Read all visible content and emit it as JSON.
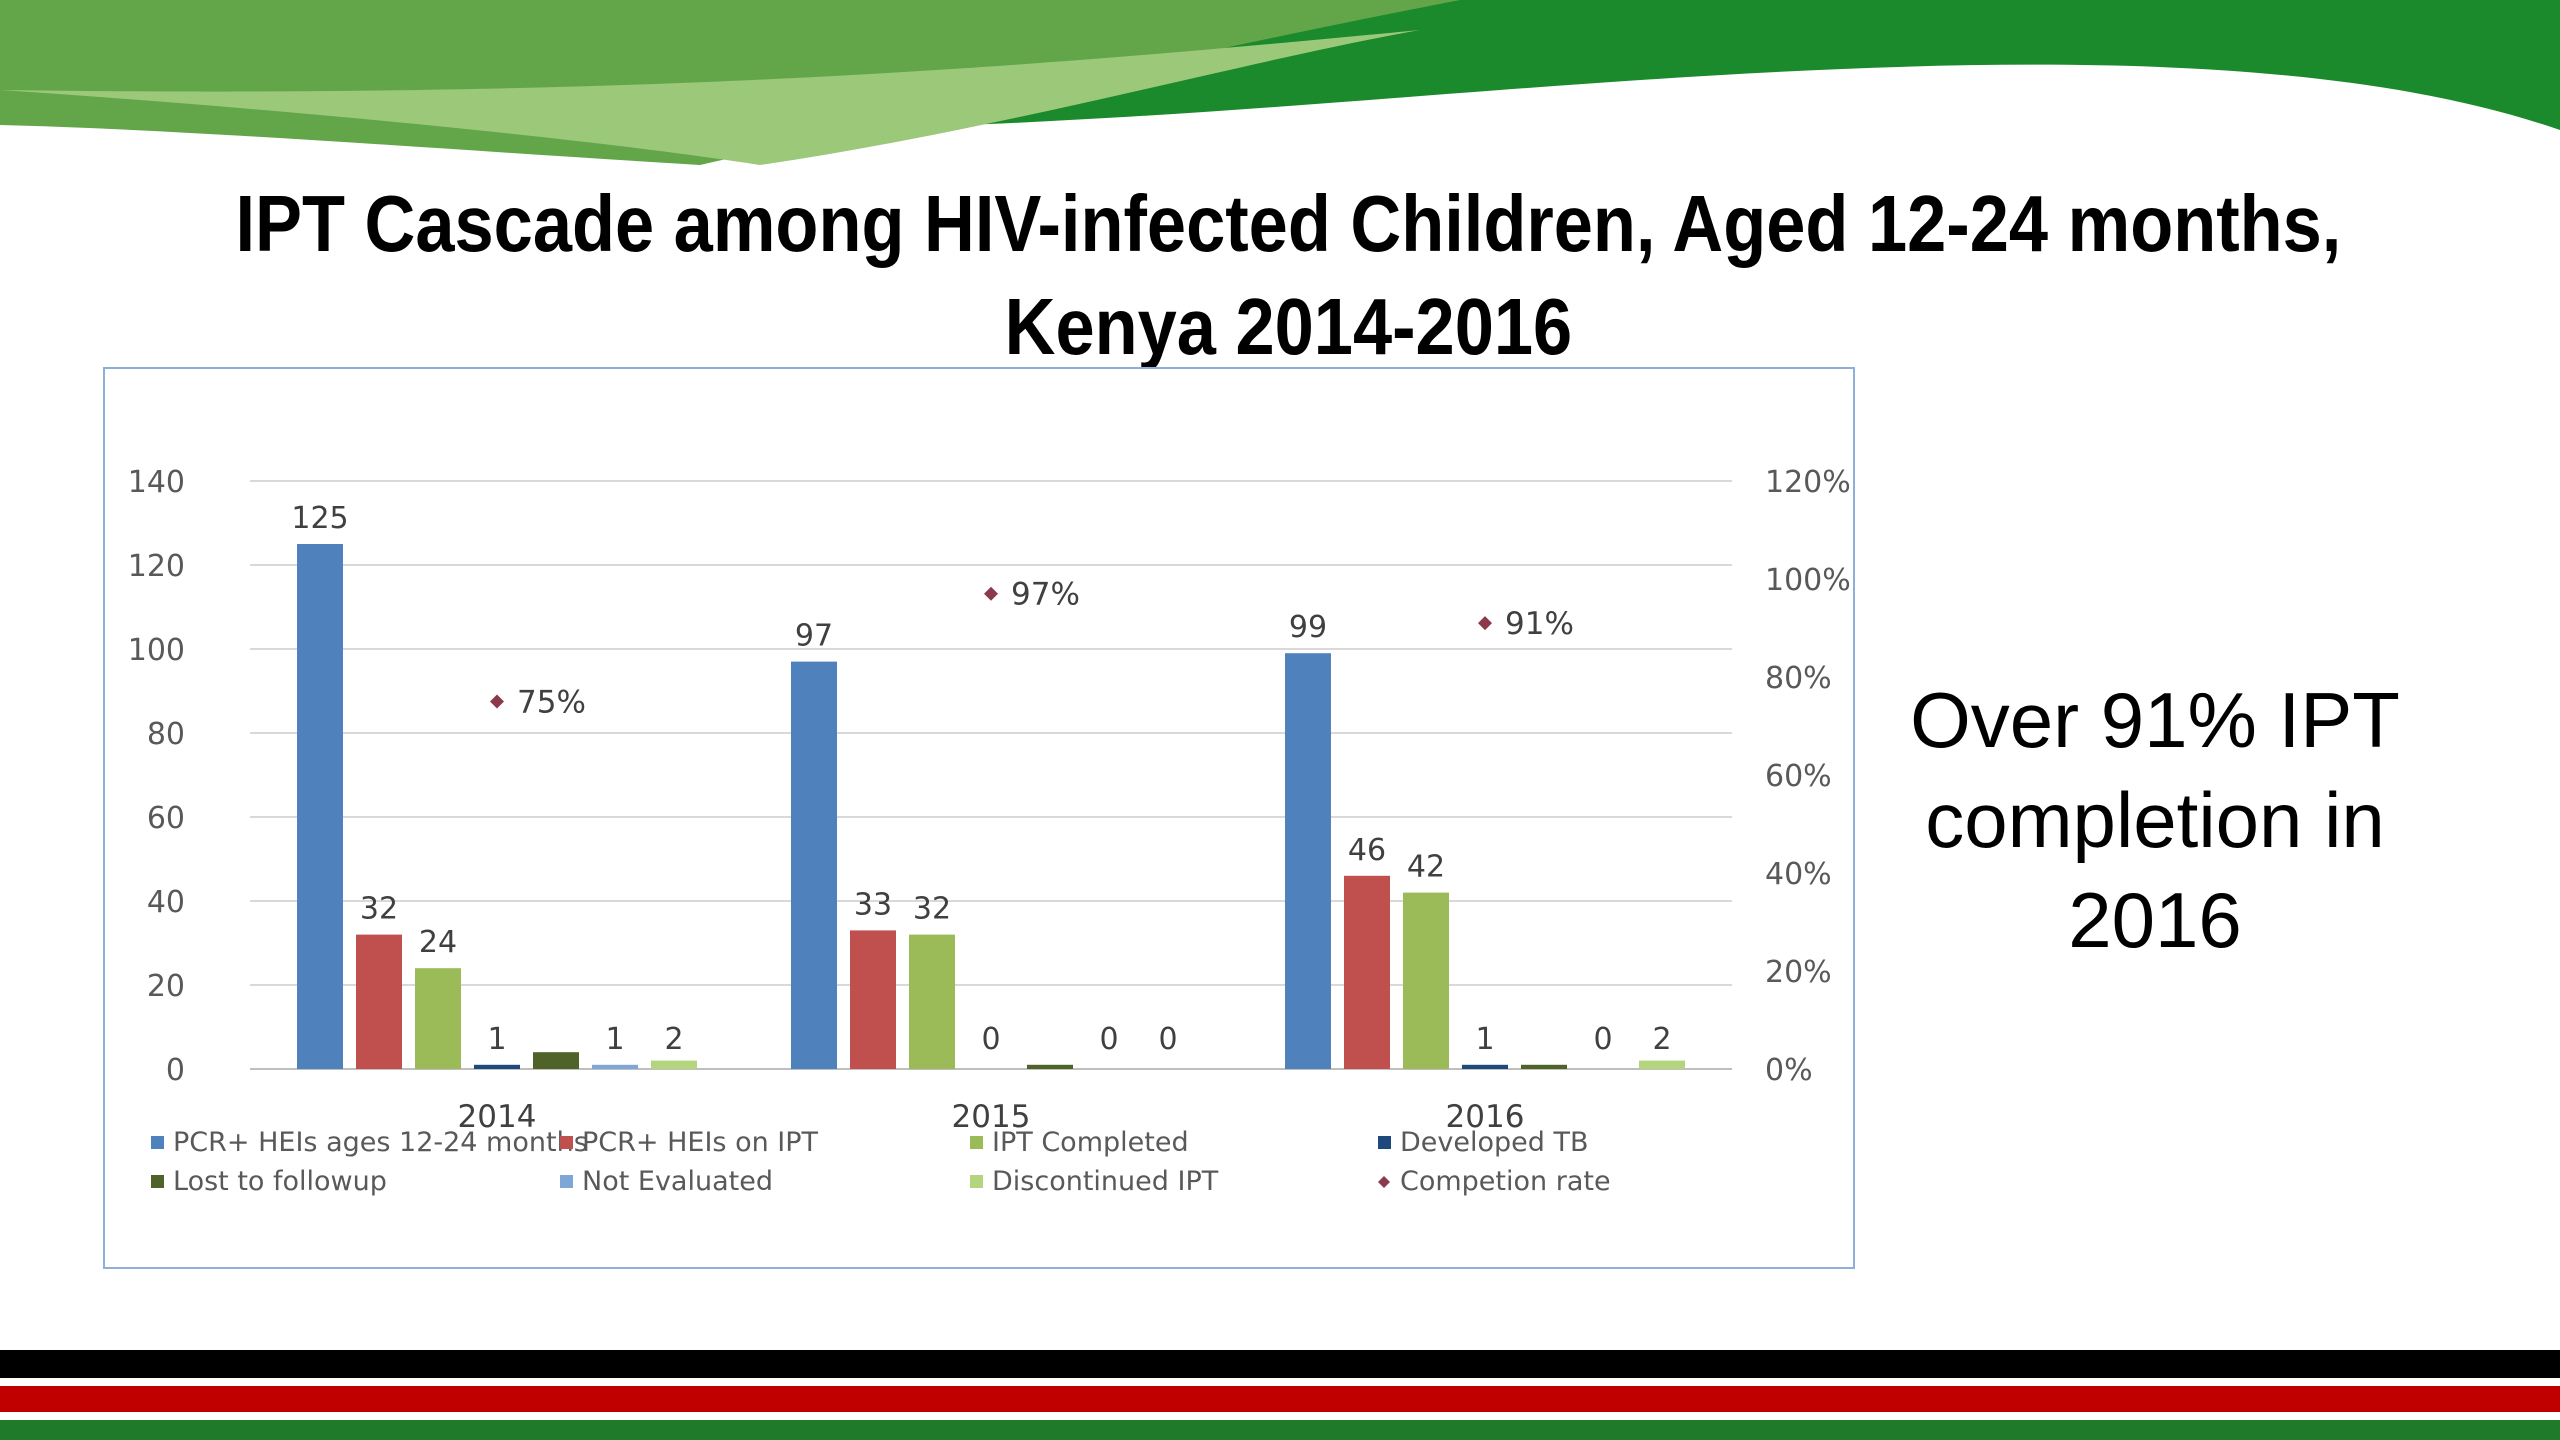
{
  "slide": {
    "title": "IPT Cascade among HIV-infected Children, Aged 12-24 months, Kenya 2014-2016",
    "side_note": "Over 91% IPT completion in 2016"
  },
  "colors": {
    "header_dark": "#1b8a2c",
    "header_light": "#9cc87a",
    "header_mid": "#63a64a",
    "footer_black": "#000000",
    "footer_red": "#c00000",
    "footer_green": "#1f7a2a"
  },
  "chart_data": {
    "type": "bar",
    "categories": [
      "2014",
      "2015",
      "2016"
    ],
    "ylim": [
      0,
      140
    ],
    "yticks": [
      0,
      20,
      40,
      60,
      80,
      100,
      120,
      140
    ],
    "y2lim": [
      0,
      1.2
    ],
    "y2ticks": [
      "0%",
      "20%",
      "40%",
      "60%",
      "80%",
      "100%",
      "120%"
    ],
    "series": [
      {
        "name": "PCR+ HEIs ages 12-24 months",
        "color": "#4f81bd",
        "values": [
          125,
          97,
          99
        ],
        "labels": [
          "125",
          "97",
          "99"
        ]
      },
      {
        "name": "PCR+ HEIs on IPT",
        "color": "#c0504d",
        "values": [
          32,
          33,
          46
        ],
        "labels": [
          "32",
          "33",
          "46"
        ]
      },
      {
        "name": "IPT Completed",
        "color": "#9bbb59",
        "values": [
          24,
          32,
          42
        ],
        "labels": [
          "24",
          "32",
          "42"
        ]
      },
      {
        "name": "Developed TB",
        "color": "#1f497d",
        "values": [
          1,
          0,
          1
        ],
        "labels": [
          "1",
          "0",
          "1"
        ]
      },
      {
        "name": "Lost to followup",
        "color": "#4f6228",
        "values": [
          4,
          1,
          1
        ],
        "labels": [
          "",
          "",
          ""
        ]
      },
      {
        "name": "Not Evaluated",
        "color": "#7ea6d6",
        "values": [
          1,
          0,
          0
        ],
        "labels": [
          "1",
          "0",
          "0"
        ]
      },
      {
        "name": "Discontinued IPT",
        "color": "#b3d57e",
        "values": [
          2,
          0,
          2
        ],
        "labels": [
          "2",
          "0",
          "2"
        ]
      }
    ],
    "rate_series": {
      "name": "Competion rate",
      "color": "#8b3a4e",
      "values": [
        0.75,
        0.97,
        0.91
      ],
      "labels": [
        "75%",
        "97%",
        "91%"
      ]
    },
    "legend_position": "bottom"
  }
}
